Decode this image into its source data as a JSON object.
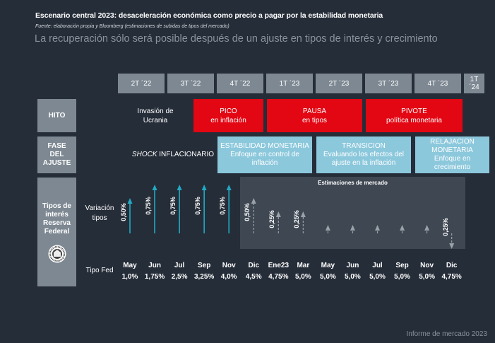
{
  "title": "Escenario central 2023: desaceleración económica como precio a pagar por la estabilidad monetaria",
  "source": "Fuente: elaboración propia y Bloomberg (estimaciones de subidas de tipos del mercado)",
  "subtitle": "La recuperación sólo será posible después de un ajuste en tipos de interés y crecimiento",
  "quarters": [
    "2T ´22",
    "3T ´22",
    "4T ´22",
    "1T ´23",
    "2T ´23",
    "3T ´23",
    "4T ´23",
    "1T ´24"
  ],
  "rows": {
    "hito": "HITO",
    "fase": "FASE DEL AJUSTE",
    "tipos": "Tipos de interés Reserva Federal",
    "variacion": "Variación tipos",
    "tipo_fed": "Tipo Fed"
  },
  "hito": {
    "invasion": "Invasión de Ucrania",
    "pico": {
      "title": "PICO",
      "sub": "en inflación"
    },
    "pausa": {
      "title": "PAUSA",
      "sub": "en tipos"
    },
    "pivote": {
      "title": "PIVOTE",
      "sub": "política monetaria"
    }
  },
  "fase": {
    "shock_italic": "SHOCK",
    "shock_rest": " INFLACIONARIO",
    "estabilidad": {
      "title": "ESTABILIDAD MONETARIA",
      "sub": "Enfoque en control de inflación"
    },
    "transicion": {
      "title": "TRANSICION",
      "sub": "Evaluando los efectos del ajuste en la inflación"
    },
    "relajacion": {
      "title": "RELAJACION MONETARIA",
      "sub": "Enfoque en crecimiento"
    }
  },
  "market_label": "Estimaciones de mercado",
  "months": [
    {
      "m": "May",
      "rate": "1,0%",
      "change": 0.5,
      "label": "0,50%",
      "estimate": false
    },
    {
      "m": "Jun",
      "rate": "1,75%",
      "change": 0.75,
      "label": "0,75%",
      "estimate": false
    },
    {
      "m": "Jul",
      "rate": "2,5%",
      "change": 0.75,
      "label": "0,75%",
      "estimate": false
    },
    {
      "m": "Sep",
      "rate": "3,25%",
      "change": 0.75,
      "label": "0,75%",
      "estimate": false
    },
    {
      "m": "Nov",
      "rate": "4,0%",
      "change": 0.75,
      "label": "0,75%",
      "estimate": false
    },
    {
      "m": "Dic",
      "rate": "4,5%",
      "change": 0.5,
      "label": "0,50%",
      "estimate": true
    },
    {
      "m": "Ene23",
      "rate": "4,75%",
      "change": 0.25,
      "label": "0,25%",
      "estimate": true
    },
    {
      "m": "Mar",
      "rate": "5,0%",
      "change": 0.25,
      "label": "0,25%",
      "estimate": true
    },
    {
      "m": "May",
      "rate": "5,0%",
      "change": 0,
      "label": "",
      "estimate": true
    },
    {
      "m": "Jun",
      "rate": "5,0%",
      "change": 0,
      "label": "",
      "estimate": true
    },
    {
      "m": "Jul",
      "rate": "5,0%",
      "change": 0,
      "label": "",
      "estimate": true
    },
    {
      "m": "Sep",
      "rate": "5,0%",
      "change": 0,
      "label": "",
      "estimate": true
    },
    {
      "m": "Nov",
      "rate": "5,0%",
      "change": 0,
      "label": "",
      "estimate": true
    },
    {
      "m": "Dic",
      "rate": "4,75%",
      "change": -0.25,
      "label": "0,25%",
      "estimate": true
    }
  ],
  "colors": {
    "background": "#252d38",
    "actual_arrow": "#22a9c4",
    "estimate_arrow": "#9aa1a8",
    "red": "#e30613",
    "blue": "#8cc8dc"
  },
  "footer": "Informe de mercado 2023"
}
